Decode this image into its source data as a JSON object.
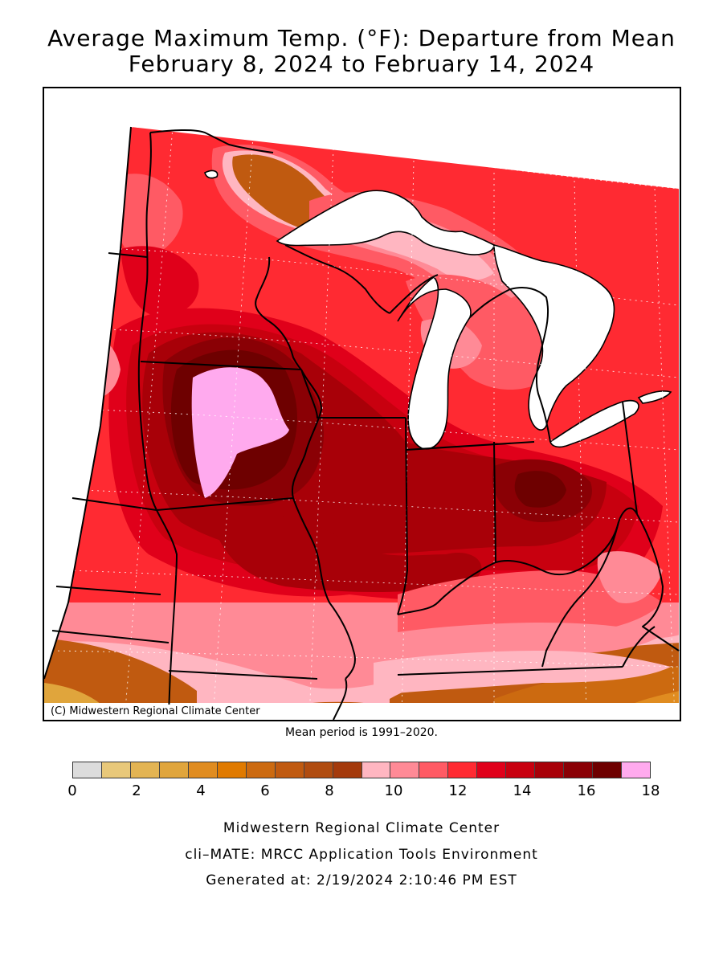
{
  "title": {
    "line1": "Average Maximum Temp. (°F): Departure from Mean",
    "line2": "February 8, 2024 to February 14, 2024"
  },
  "map": {
    "copyright": "(C) Midwestern Regional Climate Center",
    "mean_period": "Mean period is 1991–2020.",
    "hotspot_value_min": 17,
    "coolest_value_max": 2
  },
  "legend": {
    "colors": [
      "#dcdcdc",
      "#e8c87a",
      "#e3b453",
      "#e0a53c",
      "#e08c20",
      "#e07a00",
      "#cc6a10",
      "#c05a10",
      "#b04c10",
      "#a43a0c",
      "#ffb6c1",
      "#ff8a96",
      "#ff5a64",
      "#ff2a32",
      "#e0001a",
      "#c8000f",
      "#a80008",
      "#8a0005",
      "#6e0000",
      "#ffaaee"
    ],
    "ticks": [
      "0",
      "2",
      "4",
      "6",
      "8",
      "10",
      "12",
      "14",
      "16",
      "18"
    ]
  },
  "footer": {
    "line1": "Midwestern Regional Climate Center",
    "line2": "cli–MATE: MRCC Application Tools Environment",
    "line3": "Generated at: 2/19/2024 2:10:46 PM EST"
  }
}
